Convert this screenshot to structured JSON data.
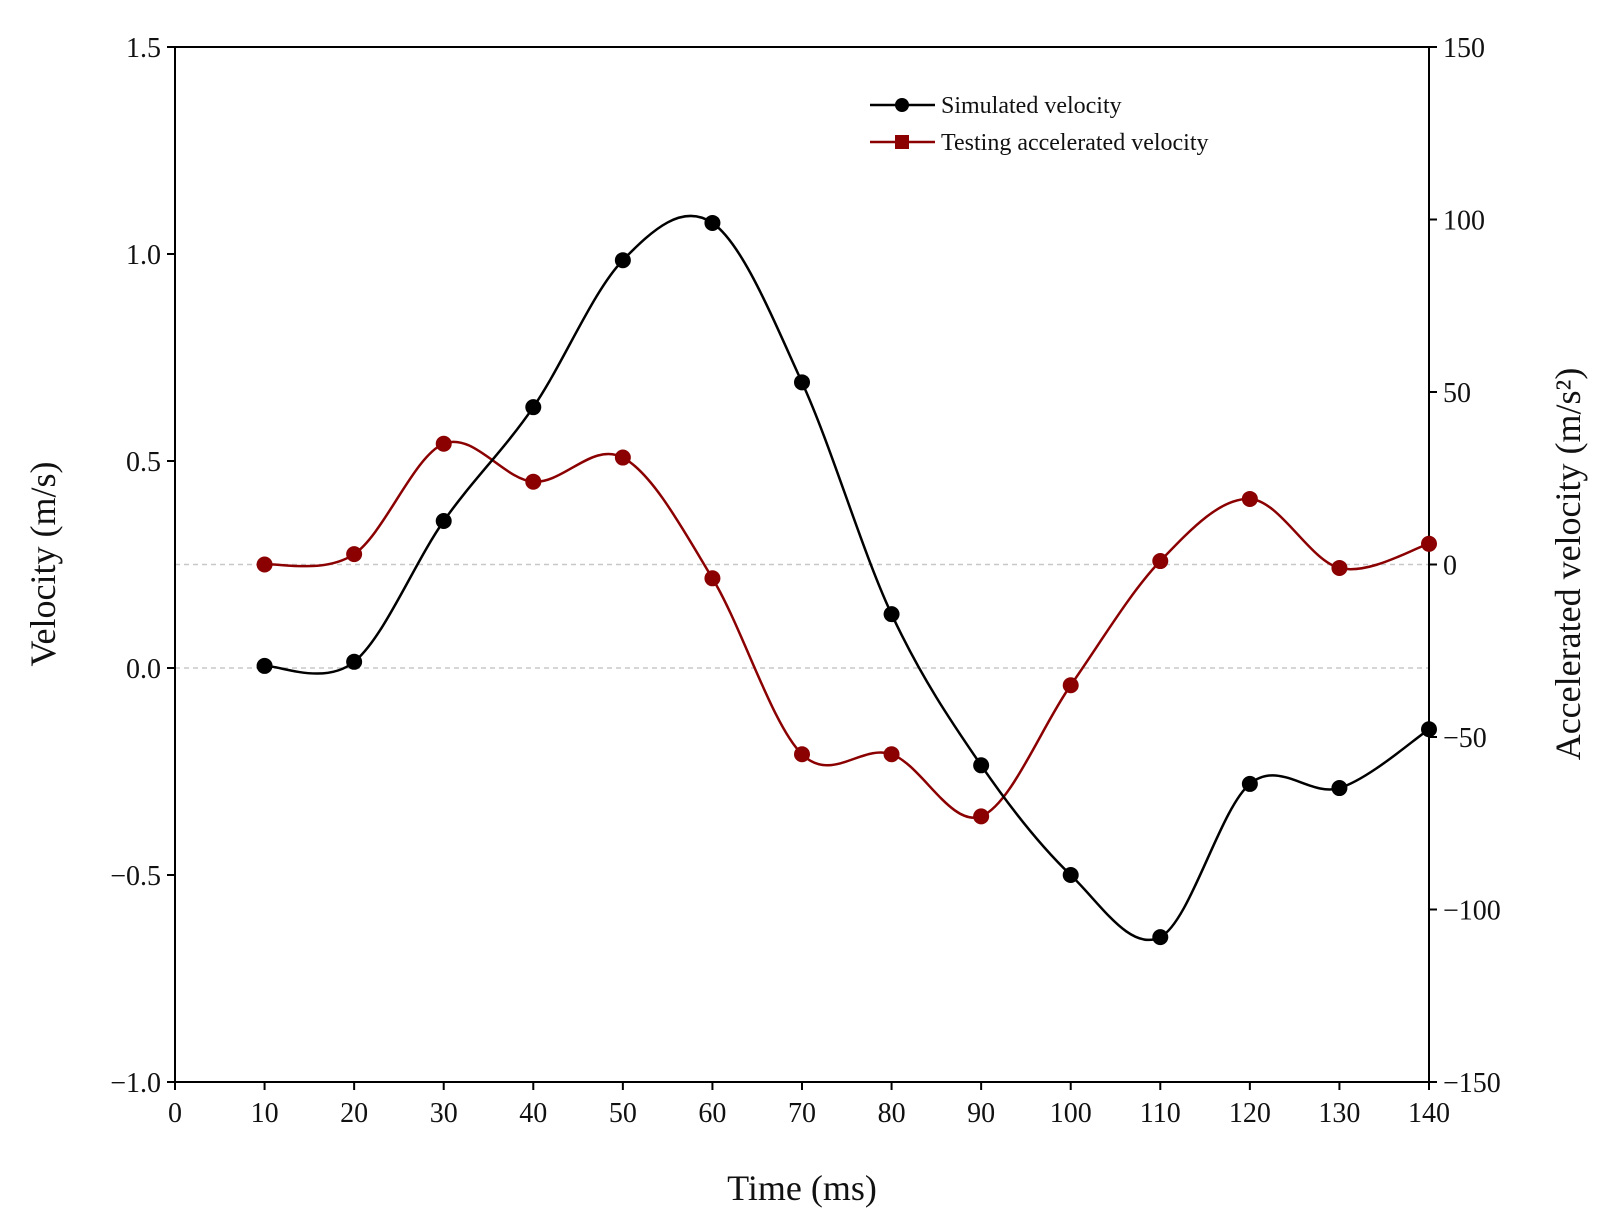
{
  "chart_data": {
    "type": "line",
    "title": "",
    "xlabel": "Time (ms)",
    "ylabel": "Velocity (m/s)",
    "y2label": "Accelerated velocity (m/s²)",
    "xlim": [
      0,
      140
    ],
    "ylim": [
      -1.0,
      1.5
    ],
    "y2lim": [
      -150,
      150
    ],
    "x_ticks": [
      0,
      10,
      20,
      30,
      40,
      50,
      60,
      70,
      80,
      90,
      100,
      110,
      120,
      130,
      140
    ],
    "x_tick_labels": [
      "0",
      "10",
      "20",
      "30",
      "40",
      "50",
      "60",
      "70",
      "80",
      "90",
      "100",
      "110",
      "120",
      "130",
      "140"
    ],
    "y_ticks": [
      -1.0,
      -0.5,
      0.0,
      0.5,
      1.0,
      1.5
    ],
    "y_tick_labels": [
      "−1.0",
      "−0.5",
      "0.0",
      "0.5",
      "1.0",
      "1.5"
    ],
    "y2_ticks": [
      -150,
      -100,
      -50,
      0,
      50,
      100,
      150
    ],
    "y2_tick_labels": [
      "−150",
      "−100",
      "−50",
      "0",
      "50",
      "100",
      "150"
    ],
    "reference_lines": [
      {
        "axis": "y",
        "value": 0.0,
        "style": "dashed"
      },
      {
        "axis": "y2",
        "value": 0,
        "style": "dashed"
      }
    ],
    "legend": {
      "location": "top-right"
    },
    "series": [
      {
        "name": "Simulated velocity",
        "axis": "left",
        "color": "#000000",
        "marker": "circle",
        "x": [
          10,
          20,
          30,
          40,
          50,
          60,
          70,
          80,
          90,
          100,
          110,
          120,
          130,
          140
        ],
        "values": [
          0.005,
          0.015,
          0.355,
          0.63,
          0.985,
          1.075,
          0.69,
          0.13,
          -0.235,
          -0.5,
          -0.65,
          -0.28,
          -0.29,
          -0.148
        ]
      },
      {
        "name": "Testing accelerated velocity",
        "axis": "right",
        "color": "#8b0000",
        "marker": "square",
        "x": [
          10,
          20,
          30,
          40,
          50,
          60,
          70,
          80,
          90,
          100,
          110,
          120,
          130,
          140
        ],
        "values": [
          0,
          3,
          35,
          24,
          31,
          -4,
          -55,
          -55,
          -73,
          -35,
          1,
          19,
          -1,
          6
        ]
      }
    ]
  }
}
